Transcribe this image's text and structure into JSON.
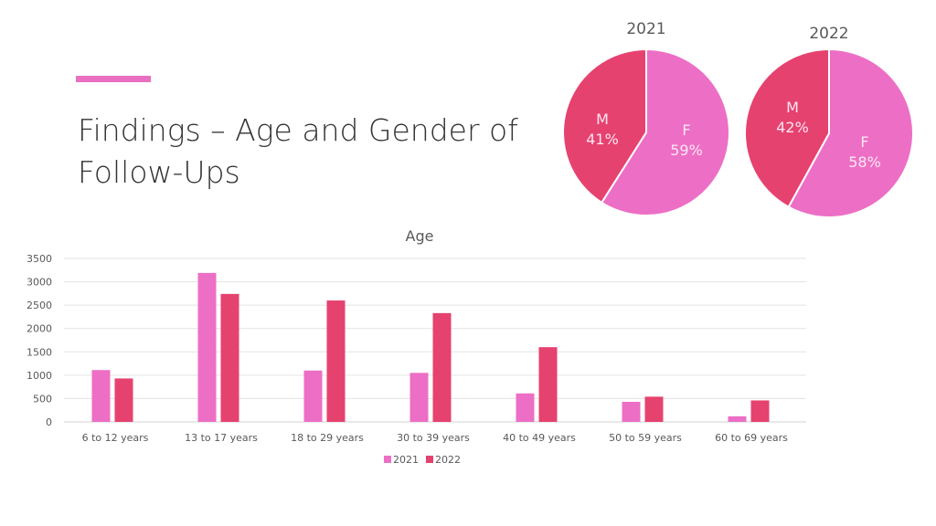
{
  "slide": {
    "title_line1": "Findings – Age and Gender of",
    "title_line2": "Follow-Ups"
  },
  "colors": {
    "accent": "#e96fc1",
    "series_2021": "#ec6fc5",
    "series_2022": "#e6426f"
  },
  "chart_data": [
    {
      "type": "pie",
      "title": "2021",
      "slices": [
        {
          "label": "M",
          "value": 41,
          "display": "41%",
          "color": "#e6426f"
        },
        {
          "label": "F",
          "value": 59,
          "display": "59%",
          "color": "#ec6fc5"
        }
      ]
    },
    {
      "type": "pie",
      "title": "2022",
      "slices": [
        {
          "label": "M",
          "value": 42,
          "display": "42%",
          "color": "#e6426f"
        },
        {
          "label": "F",
          "value": 58,
          "display": "58%",
          "color": "#ec6fc5"
        }
      ]
    },
    {
      "type": "bar",
      "title": "Age",
      "categories": [
        "6 to 12 years",
        "13 to 17 years",
        "18 to 29 years",
        "30 to 39 years",
        "40 to 49 years",
        "50 to 59 years",
        "60 to 69 years"
      ],
      "series": [
        {
          "name": "2021",
          "values": [
            1110,
            3190,
            1100,
            1050,
            610,
            430,
            120
          ],
          "color": "#ec6fc5"
        },
        {
          "name": "2022",
          "values": [
            930,
            2740,
            2600,
            2330,
            1600,
            540,
            460
          ],
          "color": "#e6426f"
        }
      ],
      "ylim": [
        0,
        3500
      ],
      "yticks": [
        "0",
        "500",
        "1000",
        "1500",
        "2000",
        "2500",
        "3000",
        "3500"
      ],
      "grid": true,
      "legend": "bottom"
    }
  ]
}
